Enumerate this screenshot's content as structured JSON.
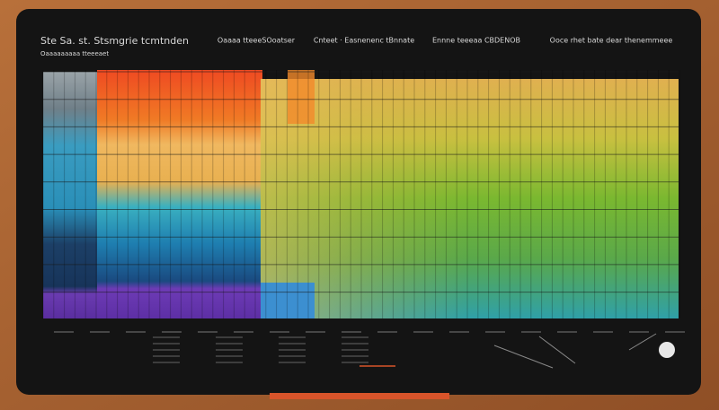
{
  "header": {
    "title": "Ste Sa. st. Stsmgrie tcmtnden",
    "subtitle": "Oaaaaaaaaa tteeeaet",
    "columns": [
      "Oaaaa tteeeSOoatser",
      "Cnteet · Easnenenc tBnnate",
      "Ennne teeeaa CBDENOB",
      "Ooce rhet bate dear thenemmeee"
    ]
  }
}
